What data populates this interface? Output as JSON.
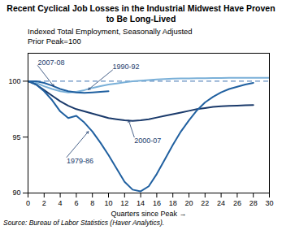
{
  "chart_data": {
    "type": "line",
    "title": "Recent Cyclical Job Losses in the Industrial Midwest Have Proven to Be Long-Lived",
    "subtitle": [
      "Indexed Total Employment, Seasonally Adjusted",
      "Prior Peak=100"
    ],
    "xlabel": "Quarters since Peak",
    "ylabel": null,
    "source": "Source: Bureau of Labor Statistics (Haver Analytics).",
    "xlim": [
      0,
      30
    ],
    "xticks": [
      0,
      2,
      4,
      6,
      8,
      10,
      12,
      14,
      16,
      18,
      20,
      22,
      24,
      26,
      28,
      30
    ],
    "ylim": [
      90,
      102.5
    ],
    "yticks": [
      90,
      95,
      100
    ],
    "grid": false,
    "reference_line": {
      "y": 100,
      "line_style": "dashed",
      "color": "#3a70b0"
    },
    "series": [
      {
        "name": "1990-92",
        "color": "#7ab0d8",
        "x": [
          0,
          1,
          2,
          3,
          4,
          5,
          6,
          7,
          8,
          9,
          10,
          11,
          12,
          13,
          14,
          15,
          16,
          17,
          18,
          19,
          20,
          21,
          22,
          23,
          24,
          25,
          26,
          27,
          28,
          29,
          30
        ],
        "values": [
          100.0,
          99.85,
          99.55,
          99.3,
          99.1,
          99.0,
          99.05,
          99.2,
          99.4,
          99.55,
          99.7,
          99.8,
          99.9,
          100.0,
          100.05,
          100.1,
          100.15,
          100.2,
          100.22,
          100.24,
          100.25,
          100.26,
          100.27,
          100.28,
          100.29,
          100.3,
          100.3,
          100.3,
          100.3,
          100.3,
          100.3
        ]
      },
      {
        "name": "2000-07",
        "color": "#1a3a6b",
        "x": [
          0,
          1,
          2,
          3,
          4,
          5,
          6,
          7,
          8,
          9,
          10,
          11,
          12,
          13,
          14,
          15,
          16,
          17,
          18,
          19,
          20,
          21,
          22,
          23,
          24,
          25,
          26,
          27,
          28
        ],
        "values": [
          100,
          99.7,
          99.2,
          98.7,
          98.2,
          97.8,
          97.5,
          97.3,
          97.1,
          96.9,
          96.7,
          96.6,
          96.5,
          96.45,
          96.5,
          96.6,
          96.75,
          96.9,
          97.05,
          97.2,
          97.35,
          97.5,
          97.6,
          97.7,
          97.75,
          97.8,
          97.82,
          97.85,
          97.87
        ]
      },
      {
        "name": "1979-86",
        "color": "#2060a0",
        "x": [
          0,
          1,
          2,
          3,
          4,
          5,
          6,
          7,
          8,
          9,
          10,
          11,
          12,
          13,
          14,
          15,
          16,
          17,
          18,
          19,
          20,
          21,
          22,
          23,
          24,
          25,
          26,
          27,
          28
        ],
        "values": [
          100,
          99.7,
          99.1,
          98.3,
          97.3,
          96.7,
          96.9,
          96.3,
          95.5,
          94.5,
          93.4,
          92.2,
          91.0,
          90.3,
          90.15,
          90.6,
          91.7,
          93.0,
          94.3,
          95.5,
          96.5,
          97.4,
          98.1,
          98.6,
          99.0,
          99.3,
          99.5,
          99.7,
          99.85
        ]
      },
      {
        "name": "2007-08",
        "color": "#2060a0",
        "x": [
          0,
          1,
          2,
          3,
          4,
          5,
          6,
          7,
          8,
          9,
          10
        ],
        "values": [
          100,
          100.0,
          99.85,
          99.6,
          99.3,
          99.1,
          99.0,
          98.95,
          99.0,
          99.05,
          99.1
        ]
      }
    ],
    "annotations": [
      {
        "text": "2007-08",
        "x": 3.2,
        "y": 99.55,
        "text_x": 1.2,
        "text_y": 101.4,
        "color": "#1a3a6b"
      },
      {
        "text": "1990-92",
        "x": 7.5,
        "y": 99.25,
        "text_x": 10.5,
        "text_y": 101.0,
        "color": "#1a3a6b"
      },
      {
        "text": "2000-07",
        "x": 12.5,
        "y": 96.5,
        "text_x": 13.2,
        "text_y": 95.0,
        "color": "#1a3a6b"
      },
      {
        "text": "1979-86",
        "x": 7.5,
        "y": 95.5,
        "text_x": 4.8,
        "text_y": 93.2,
        "color": "#1a3a6b"
      }
    ]
  }
}
